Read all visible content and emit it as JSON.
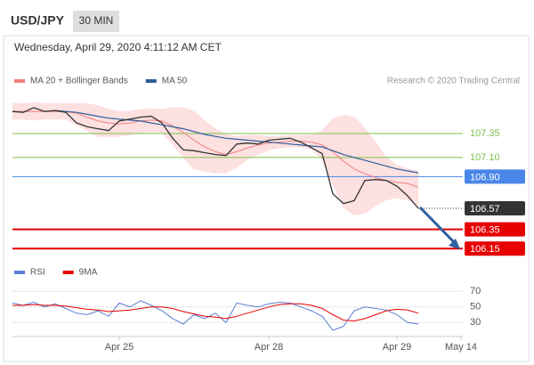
{
  "header": {
    "symbol": "USD/JPY",
    "interval": "30 MIN"
  },
  "chart_data": [
    {
      "type": "line",
      "subtitle": "Wednesday, April 29, 2020 4:11:12 AM CET",
      "credit": "Research © 2020 Trading Central",
      "categories": [
        null,
        null,
        null,
        null,
        null,
        null,
        null,
        null,
        null,
        null,
        "Apr 25",
        null,
        null,
        null,
        null,
        null,
        null,
        null,
        null,
        null,
        null,
        null,
        null,
        null,
        "Apr 28",
        null,
        null,
        null,
        null,
        null,
        null,
        null,
        null,
        null,
        null,
        null,
        "Apr 29",
        null,
        null,
        null,
        null,
        null,
        "May 14"
      ],
      "values": [
        107.58,
        107.57,
        107.62,
        107.58,
        107.59,
        107.57,
        107.46,
        107.42,
        107.4,
        107.38,
        107.48,
        107.5,
        107.52,
        107.53,
        107.46,
        107.3,
        107.18,
        107.17,
        107.15,
        107.13,
        107.12,
        107.24,
        107.25,
        107.24,
        107.28,
        107.29,
        107.3,
        107.26,
        107.2,
        107.14,
        106.72,
        106.62,
        106.65,
        106.86,
        106.87,
        106.86,
        106.8,
        106.7,
        106.57,
        null,
        null,
        null,
        null
      ],
      "color": "#333333",
      "series": [
        {
          "name": "MA 20 + Bollinger Bands",
          "color": "#f08080",
          "band_color": "#fde0e0",
          "values": [
            107.58,
            107.58,
            107.58,
            107.58,
            107.58,
            107.58,
            107.56,
            107.52,
            107.48,
            107.46,
            107.45,
            107.46,
            107.48,
            107.49,
            107.48,
            107.43,
            107.36,
            107.28,
            107.21,
            107.16,
            107.13,
            107.16,
            107.2,
            107.23,
            107.25,
            107.26,
            107.27,
            107.27,
            107.26,
            107.23,
            107.16,
            107.06,
            106.98,
            106.93,
            106.89,
            106.86,
            106.84,
            106.83,
            106.79,
            null,
            null,
            null,
            null
          ],
          "upper": [
            107.66,
            107.66,
            107.67,
            107.66,
            107.66,
            107.66,
            107.66,
            107.66,
            107.64,
            107.6,
            107.58,
            107.58,
            107.6,
            107.61,
            107.6,
            107.62,
            107.62,
            107.58,
            107.48,
            107.4,
            107.34,
            107.32,
            107.33,
            107.33,
            107.32,
            107.32,
            107.33,
            107.33,
            107.33,
            107.38,
            107.5,
            107.54,
            107.52,
            107.4,
            107.26,
            107.1,
            107.02,
            106.98,
            106.96,
            null,
            null,
            null,
            null
          ],
          "lower": [
            107.5,
            107.5,
            107.49,
            107.5,
            107.5,
            107.5,
            107.44,
            107.38,
            107.32,
            107.32,
            107.32,
            107.34,
            107.36,
            107.37,
            107.36,
            107.24,
            107.1,
            106.98,
            106.96,
            106.94,
            106.94,
            107.0,
            107.08,
            107.13,
            107.18,
            107.2,
            107.21,
            107.21,
            107.19,
            107.08,
            106.82,
            106.58,
            106.5,
            106.52,
            106.6,
            106.66,
            106.68,
            106.66,
            106.6,
            null,
            null,
            null,
            null
          ]
        },
        {
          "name": "MA 50",
          "color": "#2e5f9e",
          "values": [
            null,
            null,
            null,
            null,
            107.59,
            107.58,
            107.57,
            107.55,
            107.53,
            107.51,
            107.5,
            107.49,
            107.48,
            107.46,
            107.44,
            107.42,
            107.4,
            107.37,
            107.34,
            107.32,
            107.3,
            107.29,
            107.28,
            107.27,
            107.26,
            107.25,
            107.24,
            107.23,
            107.22,
            107.21,
            107.17,
            107.13,
            107.1,
            107.07,
            107.04,
            107.01,
            106.98,
            106.96,
            106.94,
            null,
            null,
            null,
            null
          ]
        }
      ],
      "levels": [
        {
          "value": 107.35,
          "color": "#7cbf4a",
          "label_style": "text",
          "dashed": false
        },
        {
          "value": 107.1,
          "label": "107.10",
          "color": "#7cbf4a",
          "label_style": "text",
          "dashed": false
        },
        {
          "value": 106.9,
          "label": "106.90",
          "color": "#4a86e8",
          "label_style": "box",
          "dashed": false
        },
        {
          "value": 106.57,
          "color": "#333333",
          "label_style": "box",
          "dashed": true
        },
        {
          "value": 106.35,
          "color": "#e60000",
          "label_style": "box",
          "dashed": false
        },
        {
          "value": 106.15,
          "color": "#e60000",
          "label_style": "box",
          "dashed": false
        }
      ],
      "ylim": [
        106.05,
        107.86
      ]
    },
    {
      "type": "line",
      "series": [
        {
          "name": "RSI",
          "color": "#5b7fd4",
          "values": [
            55,
            52,
            56,
            50,
            54,
            48,
            42,
            40,
            45,
            38,
            55,
            50,
            58,
            52,
            45,
            35,
            28,
            40,
            35,
            42,
            30,
            55,
            52,
            50,
            54,
            56,
            55,
            50,
            45,
            38,
            20,
            25,
            45,
            50,
            48,
            46,
            40,
            30,
            28,
            null,
            null,
            null,
            null
          ]
        },
        {
          "name": "9MA",
          "color": "#e60000",
          "values": [
            52,
            52,
            53,
            52,
            52,
            51,
            49,
            47,
            46,
            44,
            45,
            46,
            48,
            50,
            50,
            48,
            44,
            41,
            38,
            37,
            35,
            38,
            42,
            46,
            50,
            53,
            54,
            54,
            52,
            48,
            40,
            33,
            32,
            35,
            40,
            45,
            47,
            46,
            42,
            null,
            null,
            null,
            null
          ]
        }
      ],
      "ylim": [
        12,
        84
      ],
      "yticks": [
        70,
        50,
        30
      ],
      "grid": true
    }
  ]
}
